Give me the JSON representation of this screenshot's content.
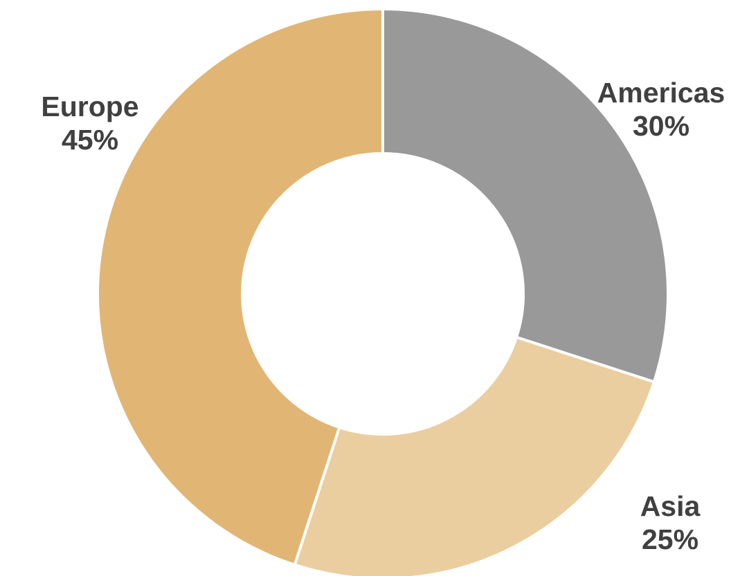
{
  "chart_data": {
    "type": "pie",
    "variant": "donut",
    "categories": [
      "Americas",
      "Asia",
      "Europe"
    ],
    "values": [
      30,
      25,
      45
    ],
    "labels": [
      "30%",
      "25%",
      "45%"
    ],
    "colors": [
      "#999999",
      "#EBCE9F",
      "#E1B574"
    ],
    "label_color": "#404040",
    "direction": "clockwise-from-top",
    "legend": "none"
  }
}
